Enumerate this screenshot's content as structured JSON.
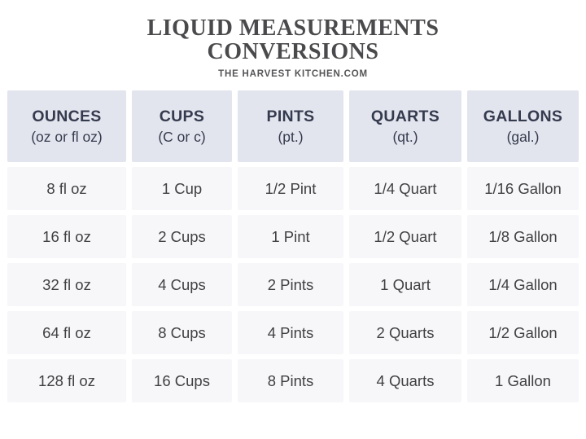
{
  "title": {
    "line1": "LIQUID MEASUREMENTS",
    "line2": "CONVERSIONS",
    "source": "THE HARVEST KITCHEN.COM"
  },
  "table": {
    "columns": [
      {
        "name": "OUNCES",
        "abbr": "(oz or fl oz)"
      },
      {
        "name": "CUPS",
        "abbr": "(C or c)"
      },
      {
        "name": "PINTS",
        "abbr": "(pt.)"
      },
      {
        "name": "QUARTS",
        "abbr": "(qt.)"
      },
      {
        "name": "GALLONS",
        "abbr": "(gal.)"
      }
    ],
    "rows": [
      [
        "8 fl oz",
        "1 Cup",
        "1/2 Pint",
        "1/4 Quart",
        "1/16 Gallon"
      ],
      [
        "16 fl oz",
        "2 Cups",
        "1 Pint",
        "1/2 Quart",
        "1/8 Gallon"
      ],
      [
        "32 fl oz",
        "4 Cups",
        "2 Pints",
        "1 Quart",
        "1/4 Gallon"
      ],
      [
        "64 fl oz",
        "8 Cups",
        "4 Pints",
        "2 Quarts",
        "1/2 Gallon"
      ],
      [
        "128 fl oz",
        "16 Cups",
        "8 Pints",
        "4 Quarts",
        "1 Gallon"
      ]
    ]
  },
  "colors": {
    "page_background": "#ffffff",
    "header_cell_background": "#e3e5ee",
    "header_text": "#353b4e",
    "data_cell_background": "#f7f7f9",
    "data_text": "#414144",
    "title_text": "#4a4a4c",
    "cell_gutter": "#ffffff"
  },
  "chart_data": {
    "type": "table",
    "title": "LIQUID MEASUREMENTS CONVERSIONS",
    "subtitle": "THE HARVEST KITCHEN.COM",
    "categories": [
      "OUNCES (oz or fl oz)",
      "CUPS (C or c)",
      "PINTS (pt.)",
      "QUARTS (qt.)",
      "GALLONS (gal.)"
    ],
    "rows": [
      [
        "8 fl oz",
        "1 Cup",
        "1/2 Pint",
        "1/4 Quart",
        "1/16 Gallon"
      ],
      [
        "16 fl oz",
        "2 Cups",
        "1 Pint",
        "1/2 Quart",
        "1/8 Gallon"
      ],
      [
        "32 fl oz",
        "4 Cups",
        "2 Pints",
        "1 Quart",
        "1/4 Gallon"
      ],
      [
        "64 fl oz",
        "8 Cups",
        "4 Pints",
        "2 Quarts",
        "1/2 Gallon"
      ],
      [
        "128 fl oz",
        "16 Cups",
        "8 Pints",
        "4 Quarts",
        "1 Gallon"
      ]
    ],
    "numeric_equivalents_in_fl_oz": [
      8,
      16,
      32,
      64,
      128
    ],
    "layout": "header row top, 5 columns, white gutters between cells, no gridlines"
  }
}
